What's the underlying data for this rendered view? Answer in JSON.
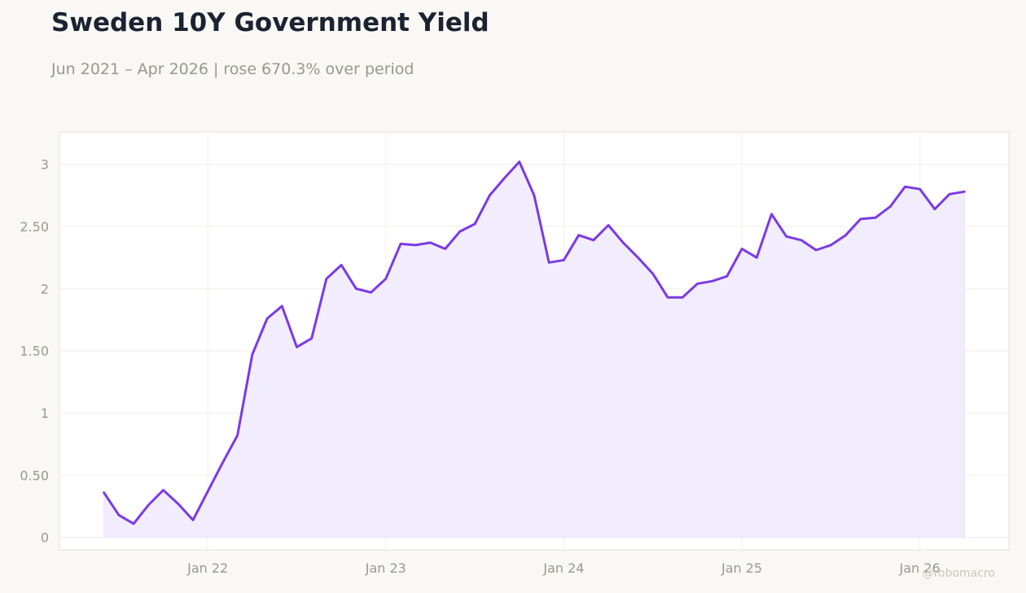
{
  "header": {
    "title": "Sweden 10Y Government Yield",
    "subtitle": "Jun 2021 – Apr 2026 | rose 670.3% over period"
  },
  "watermark": "@robomacro",
  "colors": {
    "line": "#7b3ae4",
    "area": "#f2edfc",
    "background": "#f9f8f5",
    "plot_background": "#ffffff"
  },
  "chart_data": {
    "type": "area",
    "xlabel": "",
    "ylabel": "",
    "ylim": [
      -0.1,
      3.26
    ],
    "grid": true,
    "y_ticks": [
      {
        "value": 0,
        "label": "0"
      },
      {
        "value": 0.5,
        "label": "0.50"
      },
      {
        "value": 1,
        "label": "1"
      },
      {
        "value": 1.5,
        "label": "1.50"
      },
      {
        "value": 2,
        "label": "2"
      },
      {
        "value": 2.5,
        "label": "2.50"
      },
      {
        "value": 3,
        "label": "3"
      }
    ],
    "x_ticks": [
      {
        "value": "2022-01",
        "label": "Jan 22"
      },
      {
        "value": "2023-01",
        "label": "Jan 23"
      },
      {
        "value": "2024-01",
        "label": "Jan 24"
      },
      {
        "value": "2025-01",
        "label": "Jan 25"
      },
      {
        "value": "2026-01",
        "label": "Jan 26"
      }
    ],
    "xlim": [
      "2021-03",
      "2026-07"
    ],
    "x": [
      "2021-06",
      "2021-07",
      "2021-08",
      "2021-09",
      "2021-10",
      "2021-11",
      "2021-12",
      "2022-01",
      "2022-02",
      "2022-03",
      "2022-04",
      "2022-05",
      "2022-06",
      "2022-07",
      "2022-08",
      "2022-09",
      "2022-10",
      "2022-11",
      "2022-12",
      "2023-01",
      "2023-02",
      "2023-03",
      "2023-04",
      "2023-05",
      "2023-06",
      "2023-07",
      "2023-08",
      "2023-09",
      "2023-10",
      "2023-11",
      "2023-12",
      "2024-01",
      "2024-02",
      "2024-03",
      "2024-04",
      "2024-05",
      "2024-06",
      "2024-07",
      "2024-08",
      "2024-09",
      "2024-10",
      "2024-11",
      "2024-12",
      "2025-01",
      "2025-02",
      "2025-03",
      "2025-04",
      "2025-05",
      "2025-06",
      "2025-07",
      "2025-08",
      "2025-09",
      "2025-10",
      "2025-11",
      "2025-12",
      "2026-01",
      "2026-02",
      "2026-03",
      "2026-04"
    ],
    "series": [
      {
        "values": [
          0.36,
          0.18,
          0.11,
          0.26,
          0.38,
          0.27,
          0.14,
          0.37,
          0.6,
          0.82,
          1.47,
          1.76,
          1.86,
          1.53,
          1.6,
          2.08,
          2.19,
          2.0,
          1.97,
          2.08,
          2.36,
          2.35,
          2.37,
          2.32,
          2.46,
          2.52,
          2.75,
          2.89,
          3.02,
          2.75,
          2.21,
          2.23,
          2.43,
          2.39,
          2.51,
          2.37,
          2.25,
          2.12,
          1.93,
          1.93,
          2.04,
          2.06,
          2.1,
          2.32,
          2.25,
          2.6,
          2.42,
          2.39,
          2.31,
          2.35,
          2.43,
          2.56,
          2.57,
          2.66,
          2.82,
          2.8,
          2.64,
          2.76,
          2.78
        ]
      }
    ]
  }
}
